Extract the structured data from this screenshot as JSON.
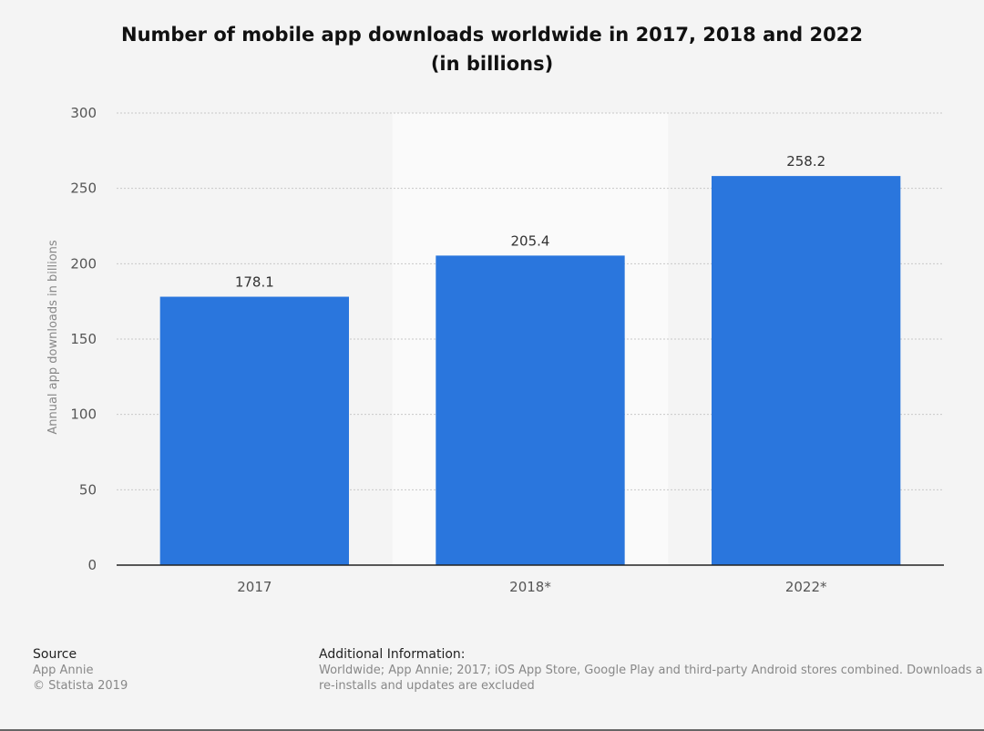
{
  "chart_data": {
    "type": "bar",
    "title": "Number of mobile app downloads worldwide in 2017, 2018 and 2022",
    "subtitle": "(in billions)",
    "categories": [
      "2017",
      "2018*",
      "2022*"
    ],
    "values": [
      178.1,
      205.4,
      258.2
    ],
    "data_labels": [
      "178.1",
      "205.4",
      "258.2"
    ],
    "xlabel": "",
    "ylabel": "Annual app downloads in billions",
    "ylim": [
      0,
      300
    ],
    "yticks": [
      "0",
      "50",
      "100",
      "150",
      "200",
      "250",
      "300"
    ],
    "grid": true,
    "highlighted_category": "2018*",
    "bar_color": "#2a76dd",
    "highlight_color": "#fafafa"
  },
  "footer": {
    "source_heading": "Source",
    "source": "App Annie",
    "copyright": "© Statista 2019",
    "info_heading": "Additional Information:",
    "info_line1": "Worldwide; App Annie; 2017; iOS App Store, Google Play and third-party Android stores combined. Downloads a",
    "info_line2": "re-installs and updates are excluded"
  }
}
